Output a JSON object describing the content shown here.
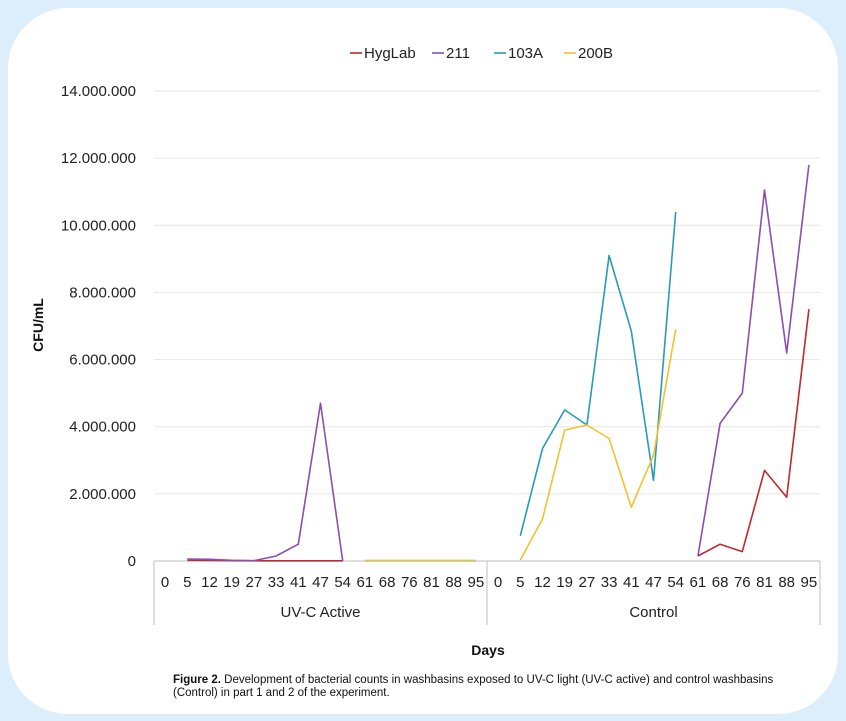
{
  "colors": {
    "background": "#dceefb",
    "card": "#ffffff",
    "grid": "#e6e6e6",
    "axis": "#bfbfbf"
  },
  "caption": {
    "label": "Figure 2.",
    "text": "Development of bacterial counts in washbasins exposed to UV-C light (UV-C active) and control washbasins (Control) in part 1 and 2 of the experiment."
  },
  "chart_data": {
    "type": "line",
    "ylabel": "CFU/mL",
    "xlabel": "Days",
    "ylim": [
      0,
      14000000
    ],
    "y_ticks": [
      "0",
      "2.000.000",
      "4.000.000",
      "6.000.000",
      "8.000.000",
      "10.000.000",
      "12.000.000",
      "14.000.000"
    ],
    "grid": true,
    "legend_position": "top-center",
    "x": [
      "0",
      "5",
      "12",
      "19",
      "27",
      "33",
      "41",
      "47",
      "54",
      "61",
      "68",
      "76",
      "81",
      "88",
      "95",
      "0",
      "5",
      "12",
      "19",
      "27",
      "33",
      "41",
      "47",
      "54",
      "61",
      "68",
      "76",
      "81",
      "88",
      "95"
    ],
    "groups": [
      {
        "label": "UV-C Active",
        "start": 0,
        "end": 15
      },
      {
        "label": "Control",
        "start": 15,
        "end": 30
      }
    ],
    "series": [
      {
        "name": "HygLab",
        "color": "#c0282d",
        "values": [
          null,
          20000,
          15000,
          10000,
          5000,
          5000,
          5000,
          5000,
          5000,
          null,
          null,
          null,
          null,
          null,
          null,
          null,
          null,
          null,
          null,
          null,
          null,
          null,
          null,
          null,
          150000,
          500000,
          280000,
          2700000,
          1900000,
          7500000
        ]
      },
      {
        "name": "211",
        "color": "#8a4fb0",
        "values": [
          null,
          60000,
          50000,
          20000,
          10000,
          150000,
          500000,
          4700000,
          10000,
          null,
          null,
          null,
          null,
          null,
          null,
          null,
          null,
          null,
          null,
          null,
          null,
          null,
          null,
          null,
          150000,
          4100000,
          5000000,
          11050000,
          6200000,
          11800000
        ]
      },
      {
        "name": "103A",
        "color": "#2a9bb8",
        "values": [
          null,
          null,
          null,
          null,
          null,
          null,
          null,
          null,
          null,
          10000,
          10000,
          10000,
          10000,
          10000,
          10000,
          null,
          750000,
          3350000,
          4500000,
          4050000,
          9100000,
          6850000,
          2400000,
          10400000,
          null,
          null,
          null,
          null,
          null,
          null
        ]
      },
      {
        "name": "200B",
        "color": "#f2c22c",
        "values": [
          null,
          null,
          null,
          null,
          null,
          null,
          null,
          null,
          null,
          15000,
          15000,
          15000,
          15000,
          15000,
          15000,
          null,
          30000,
          1250000,
          3900000,
          4050000,
          3650000,
          1600000,
          3150000,
          6900000,
          null,
          null,
          null,
          null,
          null,
          null
        ]
      }
    ]
  }
}
